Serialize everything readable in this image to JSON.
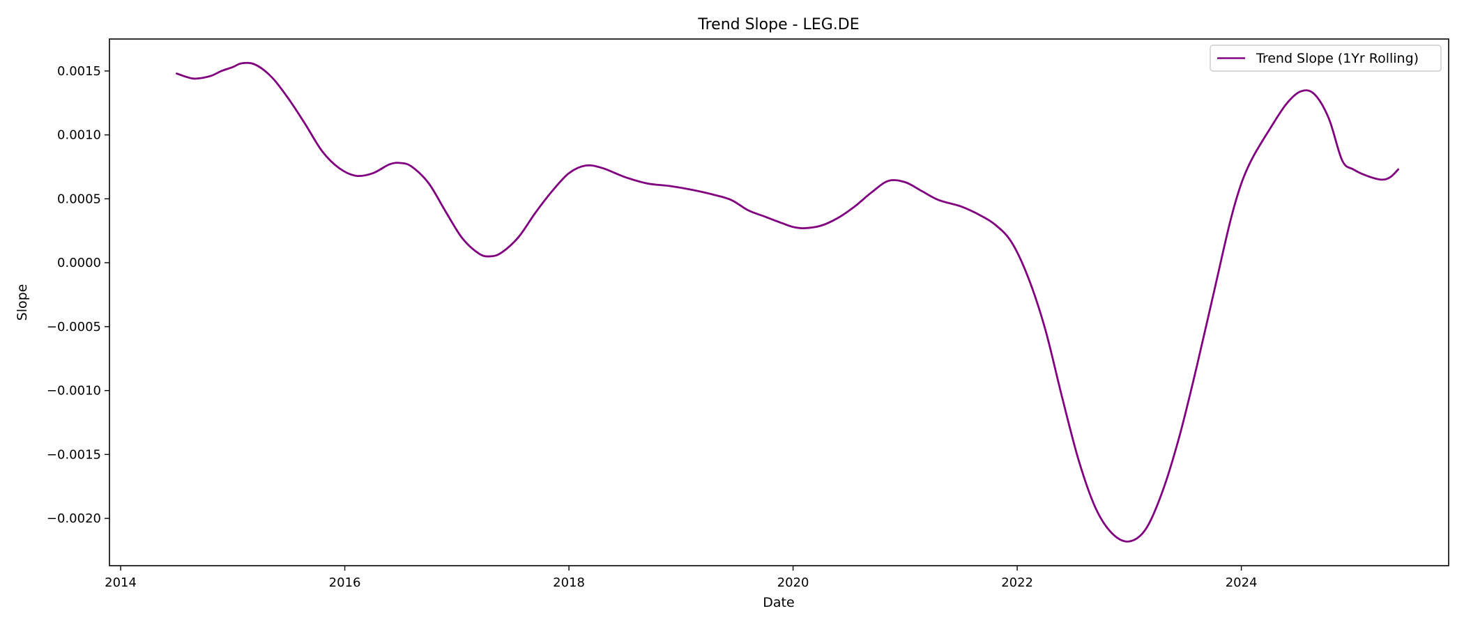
{
  "chart_data": {
    "type": "line",
    "title": "Trend Slope - LEG.DE",
    "xlabel": "Date",
    "ylabel": "Slope",
    "xlim": [
      2013.9,
      2025.85
    ],
    "ylim": [
      -0.00237,
      0.00175
    ],
    "x_ticks": [
      2014,
      2016,
      2018,
      2020,
      2022,
      2024
    ],
    "y_ticks": [
      0.0015,
      0.001,
      0.0005,
      0.0,
      -0.0005,
      -0.001,
      -0.0015,
      -0.002
    ],
    "y_tick_labels": [
      "0.0015",
      "0.0010",
      "0.0005",
      "0.0000",
      "−0.0005",
      "−0.0010",
      "−0.0015",
      "−0.0020"
    ],
    "grid": false,
    "legend_position": "top-right",
    "series": [
      {
        "name": "Trend Slope (1Yr Rolling)",
        "color": "#800080",
        "x": [
          2014.5,
          2014.6,
          2014.67,
          2014.8,
          2014.9,
          2015.0,
          2015.08,
          2015.2,
          2015.35,
          2015.5,
          2015.65,
          2015.8,
          2015.95,
          2016.1,
          2016.25,
          2016.4,
          2016.5,
          2016.6,
          2016.75,
          2016.9,
          2017.05,
          2017.2,
          2017.3,
          2017.4,
          2017.55,
          2017.7,
          2017.85,
          2018.0,
          2018.15,
          2018.3,
          2018.5,
          2018.7,
          2018.9,
          2019.1,
          2019.3,
          2019.45,
          2019.6,
          2019.75,
          2019.9,
          2020.0,
          2020.1,
          2020.25,
          2020.4,
          2020.55,
          2020.7,
          2020.85,
          2021.0,
          2021.15,
          2021.3,
          2021.5,
          2021.65,
          2021.8,
          2021.95,
          2022.1,
          2022.25,
          2022.4,
          2022.55,
          2022.7,
          2022.85,
          2023.0,
          2023.15,
          2023.3,
          2023.45,
          2023.6,
          2023.75,
          2023.9,
          2024.0,
          2024.1,
          2024.25,
          2024.4,
          2024.53,
          2024.65,
          2024.78,
          2024.9,
          2025.0,
          2025.12,
          2025.25,
          2025.33,
          2025.4
        ],
        "y": [
          0.00148,
          0.00145,
          0.00144,
          0.00146,
          0.0015,
          0.00153,
          0.00156,
          0.00155,
          0.00145,
          0.00128,
          0.00108,
          0.00087,
          0.00074,
          0.00068,
          0.0007,
          0.00077,
          0.00078,
          0.00075,
          0.00062,
          0.0004,
          0.00019,
          7e-05,
          5e-05,
          8e-05,
          0.0002,
          0.00039,
          0.00056,
          0.0007,
          0.00076,
          0.00074,
          0.00067,
          0.00062,
          0.0006,
          0.00057,
          0.00053,
          0.00049,
          0.00041,
          0.00036,
          0.00031,
          0.00028,
          0.00027,
          0.00029,
          0.00035,
          0.00044,
          0.00055,
          0.00064,
          0.00063,
          0.00056,
          0.00049,
          0.00044,
          0.00038,
          0.0003,
          0.00016,
          -0.00012,
          -0.00052,
          -0.00105,
          -0.00155,
          -0.00192,
          -0.00212,
          -0.00218,
          -0.00208,
          -0.00178,
          -0.00135,
          -0.00082,
          -0.00025,
          0.00032,
          0.00062,
          0.00082,
          0.00104,
          0.00124,
          0.00134,
          0.00132,
          0.00113,
          0.0008,
          0.00073,
          0.00068,
          0.00065,
          0.00067,
          0.00073
        ]
      }
    ]
  }
}
